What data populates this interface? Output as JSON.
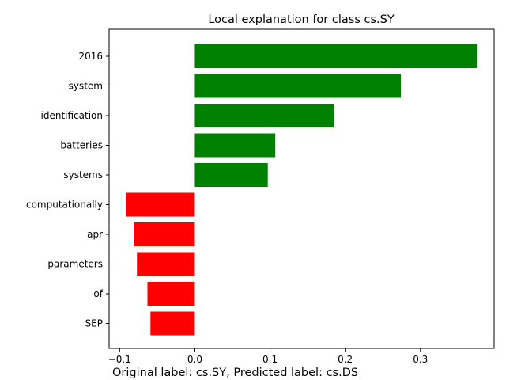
{
  "chart_data": {
    "type": "bar",
    "orientation": "horizontal",
    "title": "Local explanation for class cs.SY",
    "categories": [
      "2016",
      "system",
      "identification",
      "batteries",
      "systems",
      "computationally",
      "apr",
      "parameters",
      "of",
      "SEP"
    ],
    "values": [
      0.375,
      0.274,
      0.185,
      0.107,
      0.097,
      -0.092,
      -0.081,
      -0.077,
      -0.063,
      -0.059
    ],
    "xlim": [
      -0.114,
      0.398
    ],
    "xticks": [
      -0.1,
      0.0,
      0.1,
      0.2,
      0.3
    ],
    "xtick_labels": [
      "−0.1",
      "0.0",
      "0.1",
      "0.2",
      "0.3"
    ],
    "positive_color": "#008000",
    "negative_color": "#ff0000",
    "grid": false,
    "legend": "none",
    "xlabel": "",
    "ylabel": ""
  },
  "footer_text": "Original label: cs.SY, Predicted label: cs.DS"
}
